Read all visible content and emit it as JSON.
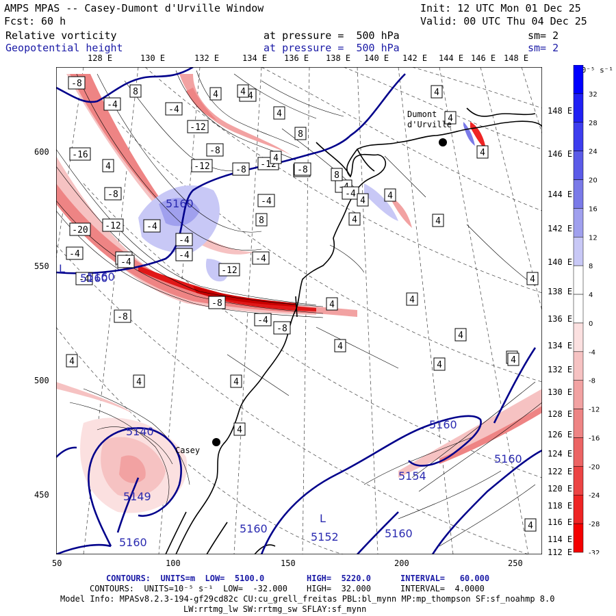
{
  "header": {
    "title": "AMPS MPAS -- Casey-Dumont d'Urville Window",
    "init": "Init: 12 UTC Mon 01 Dec 25",
    "fcst_label": "Fcst:",
    "fcst_value": "60 h",
    "valid": "Valid: 00 UTC Thu 04 Dec 25",
    "field1": "Relative vorticity",
    "field1_pressure": "at pressure =  500 hPa",
    "field1_sm": "sm= 2",
    "field2": "Geopotential height",
    "field2_pressure": "at pressure =  500 hPa",
    "field2_sm": "sm= 2"
  },
  "top_axis": [
    "128 E",
    "130 E",
    "132 E",
    "134 E",
    "136 E",
    "138 E",
    "140 E",
    "142 E",
    "144 E",
    "146 E",
    "148 E"
  ],
  "right_axis": [
    "148 E",
    "146 E",
    "144 E",
    "142 E",
    "140 E",
    "138 E",
    "136 E",
    "134 E",
    "132 E",
    "130 E",
    "128 E",
    "126 E",
    "124 E",
    "122 E",
    "120 E",
    "118 E",
    "116 E",
    "114 E",
    "112 E"
  ],
  "x_axis": [
    "50",
    "100",
    "150",
    "200",
    "250"
  ],
  "y_axis": [
    "600",
    "550",
    "500",
    "450"
  ],
  "colorbar": {
    "unit": "10⁻⁵ s⁻¹",
    "labels": [
      "32",
      "28",
      "24",
      "20",
      "16",
      "12",
      "8",
      "4",
      "0",
      "-4",
      "-8",
      "-12",
      "-16",
      "-20",
      "-24",
      "-28",
      "-32"
    ],
    "colors": [
      "#0000ff",
      "#2020f4",
      "#3d3dee",
      "#5b5be8",
      "#7a7ae8",
      "#a0a0ee",
      "#c8c8f6",
      "#ffffff",
      "#ffffff",
      "#fbe0e0",
      "#f6c2c2",
      "#f2a2a2",
      "#ee8484",
      "#ec6464",
      "#ec4444",
      "#ee2424",
      "#f40000"
    ]
  },
  "places": {
    "casey": "Casey",
    "dumont": "Dumont",
    "durville": "d'Urville"
  },
  "height_labels": [
    "5160",
    "5160",
    "5140",
    "5149",
    "5160",
    "5160",
    "5152",
    "5160",
    "5154",
    "5160",
    "5160",
    "5160"
  ],
  "low_labels": [
    "L",
    "L"
  ],
  "vort_labels": [
    "-8",
    "-4",
    "8",
    "-4",
    "4",
    "-12",
    "-8",
    "-4",
    "-12",
    "-8",
    "4",
    "-4",
    "-12",
    "-8",
    "-4",
    "-4",
    "4",
    "-16",
    "-8",
    "-20",
    "-12",
    "-4",
    "-4",
    "-8",
    "-4",
    "-4",
    "-8",
    "-4",
    "-12",
    "-8",
    "-4",
    "-8",
    "-4",
    "-4",
    "-4",
    "8",
    "4",
    "4",
    "8",
    "8",
    "4",
    "4",
    "4",
    "4",
    "4",
    "4",
    "4",
    "4",
    "4",
    "4",
    "4",
    "4",
    "4",
    "4",
    "4",
    "4",
    "4",
    "4",
    "4",
    "4"
  ],
  "footer": {
    "contours1_label": "CONTOURS:  UNITS=m  LOW=  5100.0",
    "contours1_high": "HIGH=  5220.0",
    "contours1_interval": "INTERVAL=   60.000",
    "contours2_label": "CONTOURS:  UNITS=10⁻⁵ s⁻¹  LOW=  -32.000",
    "contours2_high": "HIGH=  32.000",
    "contours2_interval": "INTERVAL=  4.0000",
    "model_info": "Model Info: MPASv8.2.3-194-gf29cd82c CU:cu_grell_freitas PBL:bl_mynn MP:mp_thompson SF:sf_noahmp 8.0",
    "model_info2": "LW:rrtmg_lw SW:rrtmg_sw SFLAY:sf_mynn"
  }
}
